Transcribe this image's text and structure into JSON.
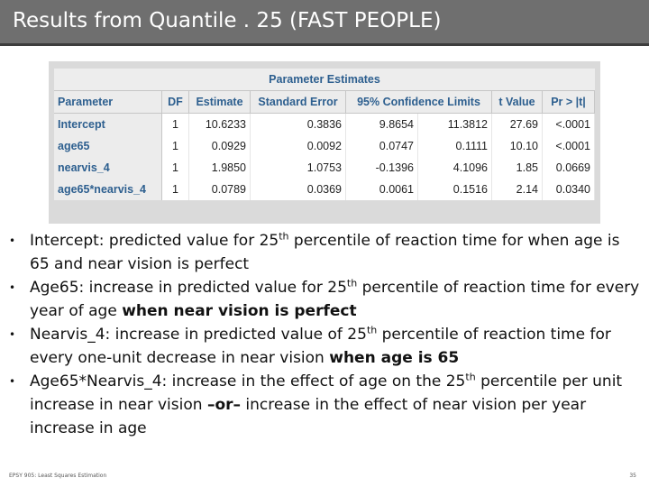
{
  "title": "Results from Quantile . 25 (FAST PEOPLE)",
  "table": {
    "caption": "Parameter Estimates",
    "headers": [
      "Parameter",
      "DF",
      "Estimate",
      "Standard Error",
      "95% Confidence Limits",
      "t Value",
      "Pr > |t|"
    ],
    "rows": [
      {
        "param": "Intercept",
        "df": "1",
        "estimate": "10.6233",
        "se": "0.3836",
        "lcl": "9.8654",
        "ucl": "11.3812",
        "t": "27.69",
        "p": "<.0001"
      },
      {
        "param": "age65",
        "df": "1",
        "estimate": "0.0929",
        "se": "0.0092",
        "lcl": "0.0747",
        "ucl": "0.1111",
        "t": "10.10",
        "p": "<.0001"
      },
      {
        "param": "nearvis_4",
        "df": "1",
        "estimate": "1.9850",
        "se": "1.0753",
        "lcl": "-0.1396",
        "ucl": "4.1096",
        "t": "1.85",
        "p": "0.0669"
      },
      {
        "param": "age65*nearvis_4",
        "df": "1",
        "estimate": "0.0789",
        "se": "0.0369",
        "lcl": "0.0061",
        "ucl": "0.1516",
        "t": "2.14",
        "p": "0.0340"
      }
    ]
  },
  "bullets": {
    "b1": {
      "pre": "Intercept: predicted value for 25",
      "sup": "th",
      "post": " percentile of reaction time for when age is 65 and near vision is perfect"
    },
    "b2": {
      "pre": "Age65: increase in predicted value for 25",
      "sup": "th",
      "mid": " percentile of reaction time for every year of age ",
      "bold": "when near vision is perfect"
    },
    "b3": {
      "pre": "Nearvis_4: increase in predicted value of 25",
      "sup": "th",
      "mid": " percentile of reaction time for every one-unit decrease in near vision ",
      "bold": "when age is 65"
    },
    "b4": {
      "pre": "Age65*Nearvis_4: increase in the effect of age on the 25",
      "sup": "th",
      "mid": " percentile per unit increase in near vision ",
      "bold": "–or–",
      "post": " increase in the effect of near vision per year increase in age"
    }
  },
  "footer": {
    "left": "EPSY 905: Least Squares Estimation",
    "page": "35"
  }
}
